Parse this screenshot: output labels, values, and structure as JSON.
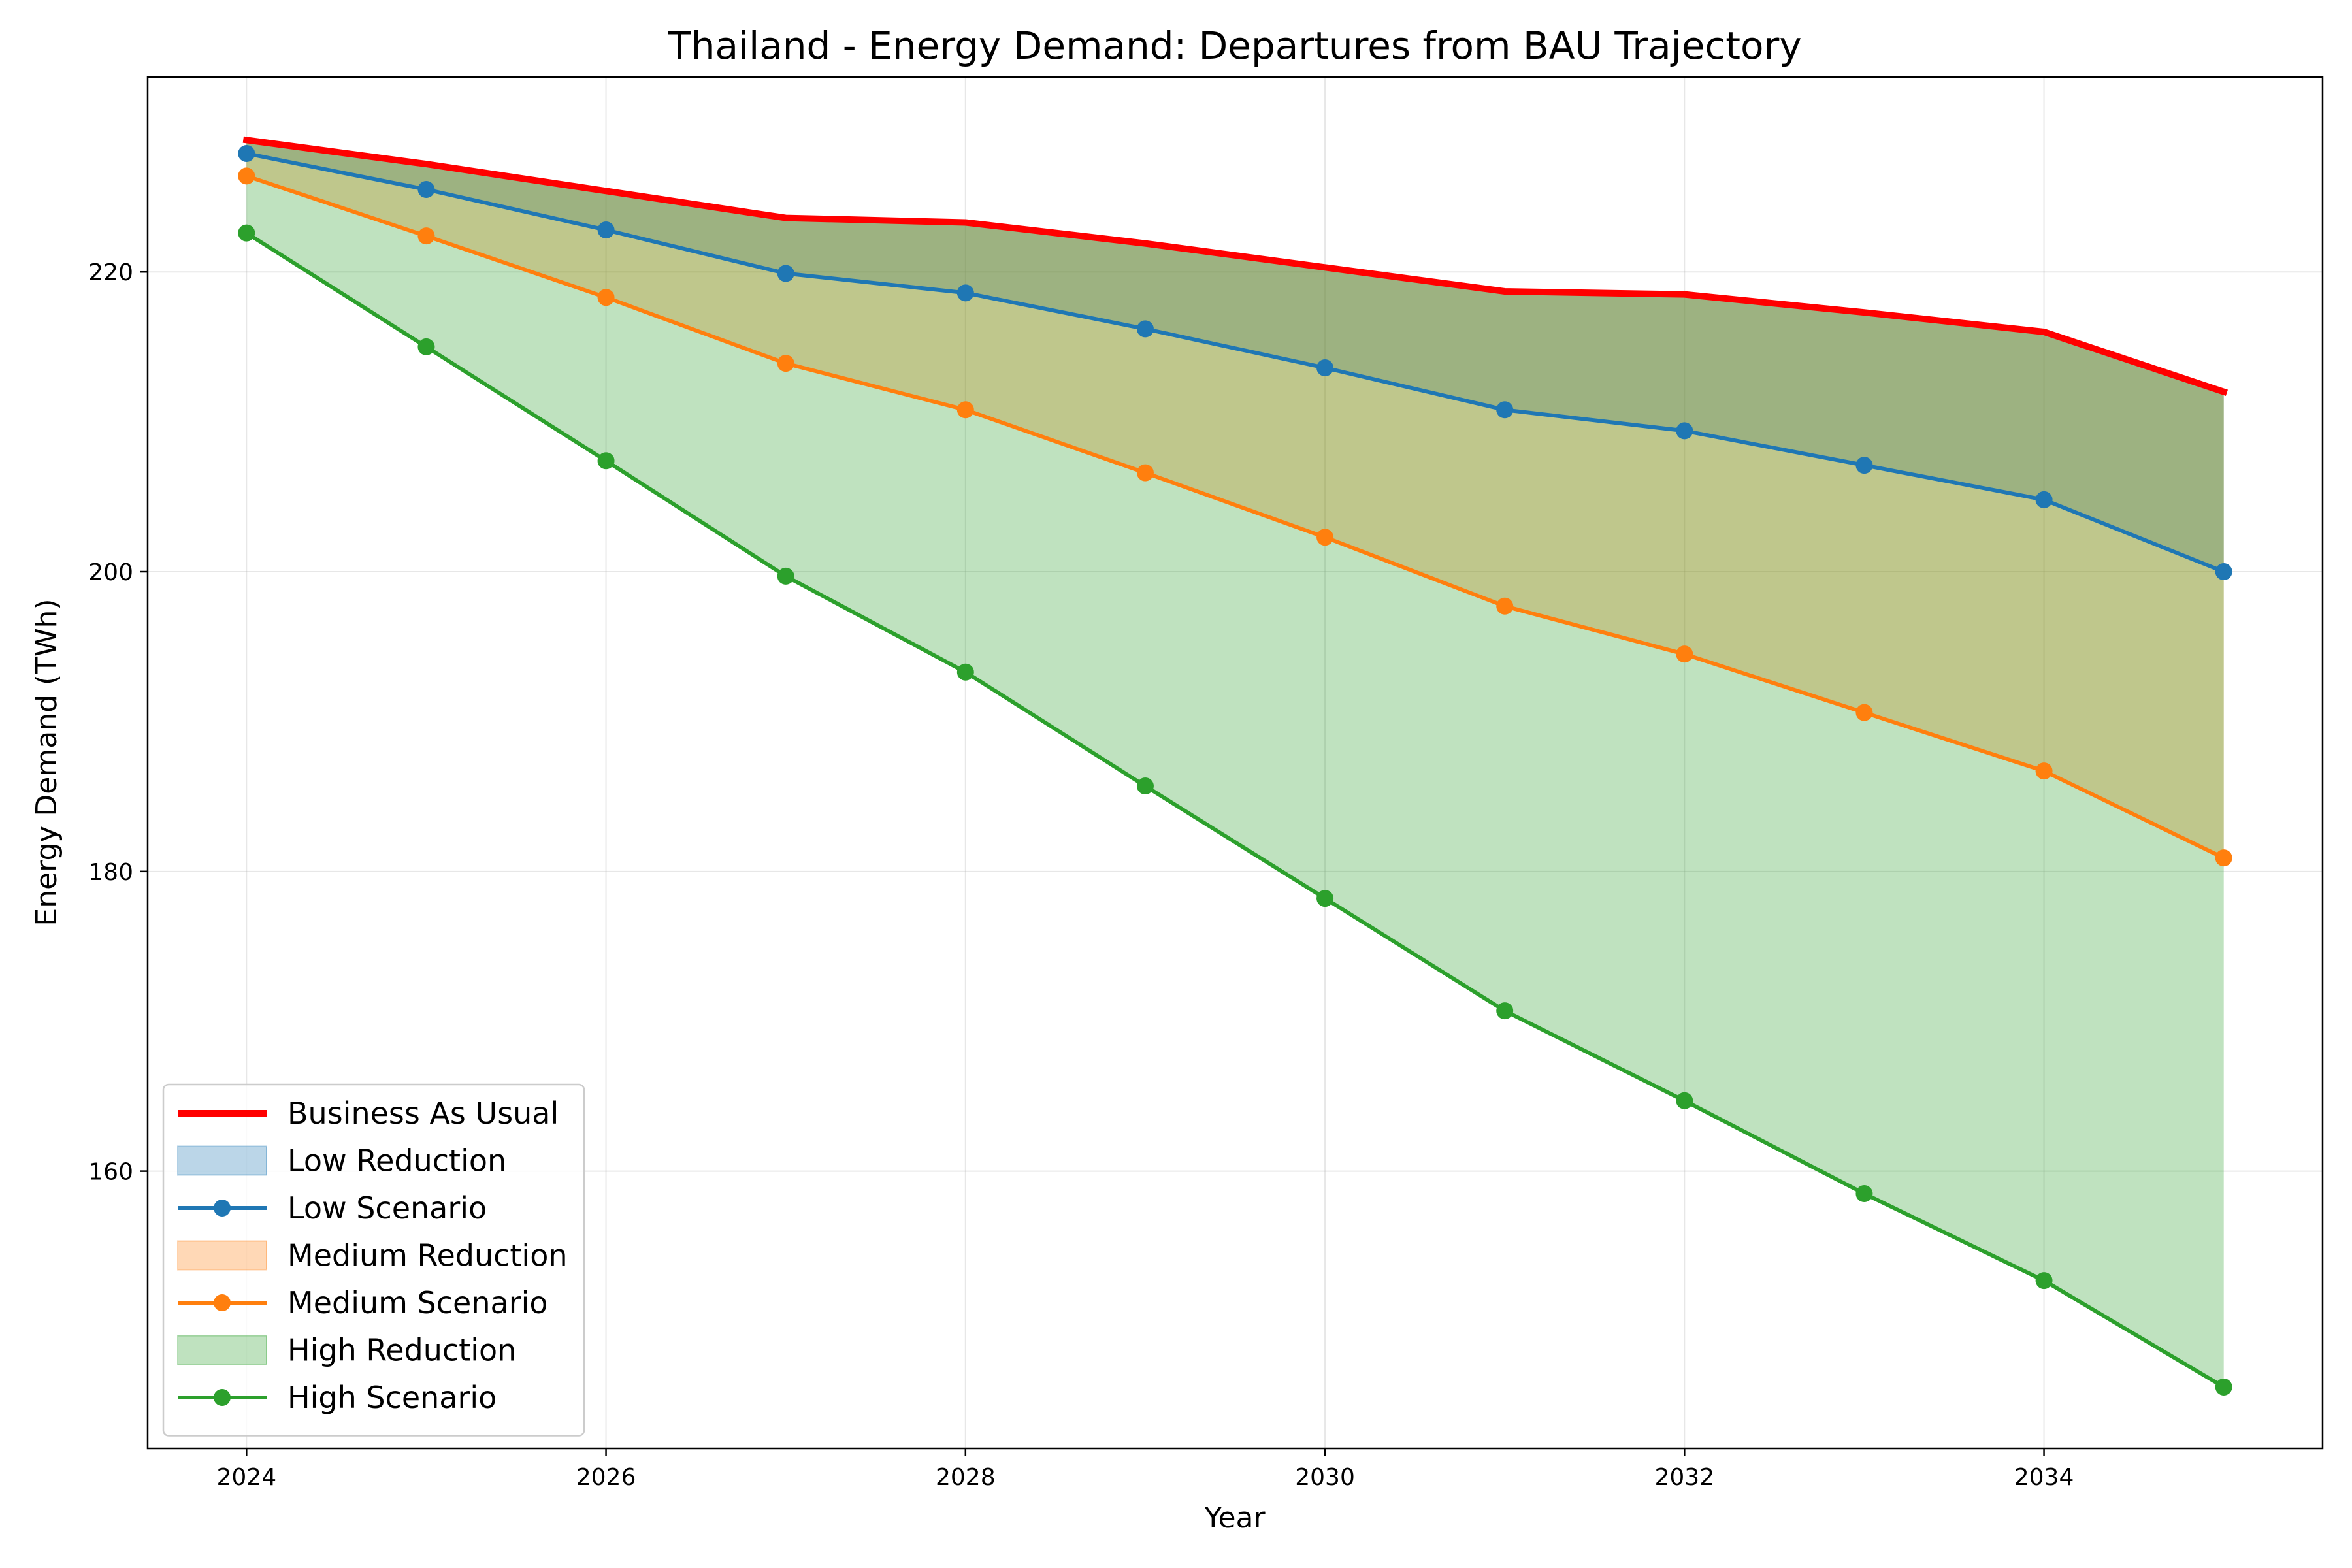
{
  "chart_data": {
    "type": "area",
    "title": "Thailand - Energy Demand: Departures from BAU Trajectory",
    "xlabel": "Year",
    "ylabel": "Energy Demand (TWh)",
    "xlim": [
      2023.45,
      2035.55
    ],
    "ylim": [
      141.5,
      233.0
    ],
    "xticks": [
      2024,
      2026,
      2028,
      2030,
      2032,
      2034
    ],
    "yticks": [
      160,
      180,
      200,
      220
    ],
    "grid": true,
    "legend_position": "lower-left",
    "x": [
      2024,
      2025,
      2026,
      2027,
      2028,
      2029,
      2030,
      2031,
      2032,
      2033,
      2034,
      2035
    ],
    "bau": {
      "name": "Business As Usual",
      "color": "#ff0000",
      "values": [
        228.8,
        227.2,
        225.4,
        223.6,
        223.3,
        221.9,
        220.3,
        218.7,
        218.5,
        217.3,
        216.0,
        212.0
      ]
    },
    "series": [
      {
        "name": "Low Scenario",
        "reduction_name": "Low Reduction",
        "color": "#1f77b4",
        "fill": "#1f77b4",
        "values": [
          227.9,
          225.5,
          222.8,
          219.9,
          218.6,
          216.2,
          213.6,
          210.8,
          209.4,
          207.1,
          204.8,
          200.0
        ]
      },
      {
        "name": "Medium Scenario",
        "reduction_name": "Medium Reduction",
        "color": "#ff7f0e",
        "fill": "#ff7f0e",
        "values": [
          226.4,
          222.4,
          218.3,
          213.9,
          210.8,
          206.6,
          202.3,
          197.7,
          194.5,
          190.6,
          186.7,
          180.9
        ]
      },
      {
        "name": "High Scenario",
        "reduction_name": "High Reduction",
        "color": "#2ca02c",
        "fill": "#2ca02c",
        "values": [
          222.6,
          215.0,
          207.4,
          199.7,
          193.3,
          185.7,
          178.2,
          170.7,
          164.7,
          158.5,
          152.7,
          145.6
        ]
      }
    ]
  }
}
